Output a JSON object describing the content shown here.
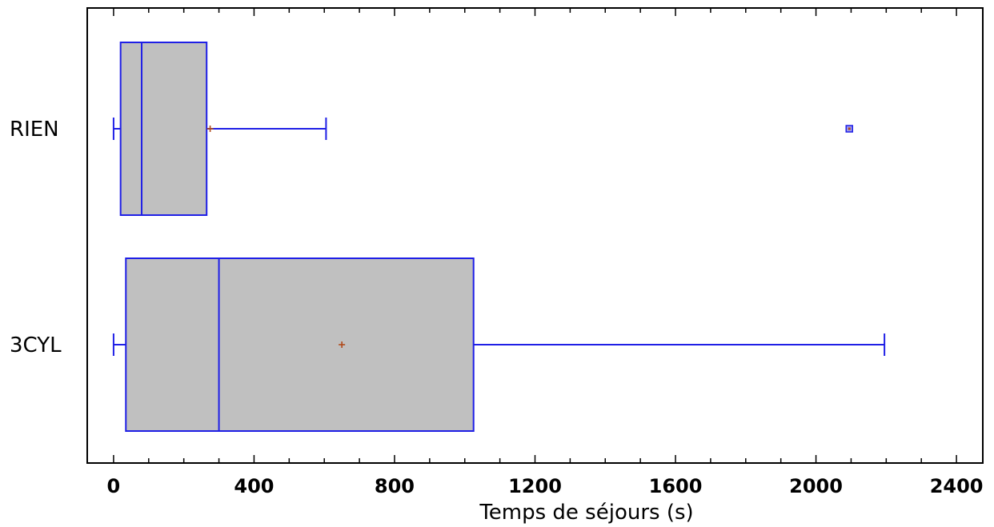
{
  "chart_data": {
    "type": "boxplot",
    "title": "",
    "xlabel": "Temps de séjours (s)",
    "ylabel": "",
    "xlim": [
      -75,
      2475
    ],
    "xticks": [
      0,
      400,
      800,
      1200,
      1600,
      2000,
      2400
    ],
    "xtick_labels": [
      "0",
      "400",
      "800",
      "1200",
      "1600",
      "2000",
      "2400"
    ],
    "orientation": "horizontal",
    "grid": false,
    "series": [
      {
        "name": "RIEN",
        "whisker_low": 0,
        "q1": 20,
        "median": 80,
        "q3": 265,
        "whisker_high": 605,
        "mean": 275,
        "outliers": [
          2095
        ]
      },
      {
        "name": "3CYL",
        "whisker_low": 0,
        "q1": 35,
        "median": 300,
        "q3": 1025,
        "whisker_high": 2195,
        "mean": 650,
        "outliers": []
      }
    ],
    "colors": {
      "box_fill": "#c0c0c0",
      "box_stroke": "#1f1fe6",
      "mean_marker": "#b04a1a",
      "outlier_fill": "#9d9df0"
    }
  }
}
